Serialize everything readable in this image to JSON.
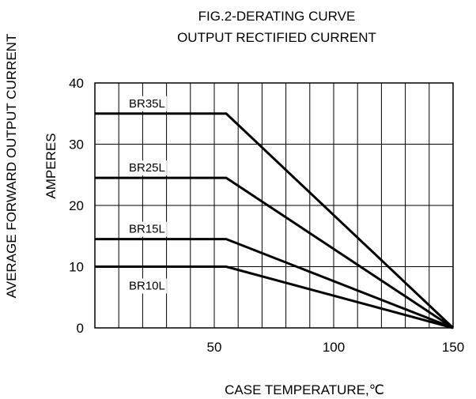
{
  "chart_data": {
    "type": "line",
    "title": "FIG.2-DERATING CURVE",
    "subtitle": "OUTPUT RECTIFIED CURRENT",
    "xlabel": "CASE TEMPERATURE,℃",
    "ylabel": "AVERAGE FORWARD OUTPUT CURRENT",
    "ylabel2": "AMPERES",
    "xlim": [
      0,
      150
    ],
    "ylim": [
      0,
      40
    ],
    "x_ticks": [
      50,
      100,
      150
    ],
    "y_ticks": [
      0,
      10,
      20,
      30,
      40
    ],
    "grid": true,
    "series": [
      {
        "name": "BR35L",
        "x": [
          0,
          55,
          150
        ],
        "y": [
          35,
          35,
          0
        ]
      },
      {
        "name": "BR25L",
        "x": [
          0,
          55,
          150
        ],
        "y": [
          24.5,
          24.5,
          0
        ]
      },
      {
        "name": "BR15L",
        "x": [
          0,
          55,
          150
        ],
        "y": [
          14.5,
          14.5,
          0
        ]
      },
      {
        "name": "BR10L",
        "x": [
          0,
          55,
          150
        ],
        "y": [
          10,
          10,
          0
        ]
      }
    ]
  }
}
